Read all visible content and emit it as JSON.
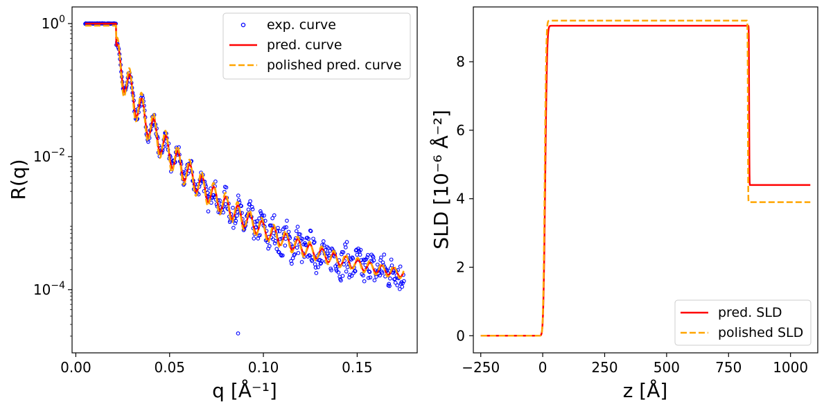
{
  "chart_data": [
    {
      "type": "scatter+line",
      "name": "reflectivity",
      "xlabel": "q [Å⁻¹]",
      "ylabel": "R(q)",
      "xlim": [
        -0.002,
        0.182
      ],
      "ylim_log10": [
        -4.95,
        0.25
      ],
      "yscale": "log",
      "xticks": [
        0.0,
        0.05,
        0.1,
        0.15
      ],
      "xtick_labels": [
        "0.00",
        "0.05",
        "0.10",
        "0.15"
      ],
      "yticks": [
        {
          "base": "10",
          "exp": "0",
          "value": 1
        },
        {
          "base": "10",
          "exp": "−2",
          "value": 0.01
        },
        {
          "base": "10",
          "exp": "−4",
          "value": 0.0001
        }
      ],
      "legend_position": "top-right",
      "series": [
        {
          "name": "exp. curve",
          "style": "open-circles",
          "color": "#0000ff"
        },
        {
          "name": "pred. curve",
          "style": "solid",
          "color": "#ff0000"
        },
        {
          "name": "polished pred. curve",
          "style": "dashed",
          "color": "#ffa500"
        }
      ],
      "model": {
        "q_min": 0.005,
        "q_max": 0.175,
        "q_critical": 0.0215,
        "plateau_R": 1.0,
        "background_R": 0.0001,
        "decay_R_at_022": 0.3,
        "decay_exponent": 4,
        "fringe_period": 0.0064,
        "fringe_log_amplitude": 0.55,
        "exp_outlier": {
          "q": 0.0865,
          "R": 2.2e-05
        }
      }
    },
    {
      "type": "line",
      "name": "sld-profile",
      "xlabel": "z [Å]",
      "ylabel": "SLD [10⁻⁶ Å⁻²]",
      "xlim": [
        -280,
        1110
      ],
      "ylim": [
        -0.5,
        9.6
      ],
      "xticks": [
        -250,
        0,
        250,
        500,
        750,
        1000
      ],
      "xtick_labels": [
        "−250",
        "0",
        "250",
        "500",
        "750",
        "1000"
      ],
      "yticks": [
        0,
        2,
        4,
        6,
        8
      ],
      "ytick_labels": [
        "0",
        "2",
        "4",
        "6",
        "8"
      ],
      "legend_position": "bottom-right",
      "series": [
        {
          "name": "pred. SLD",
          "style": "solid",
          "color": "#ff0000",
          "z_start": -250,
          "z_end": 1080,
          "substrate": 0.0,
          "film": 9.05,
          "ambient": 4.4,
          "interface1_z": 10,
          "interface1_width": 6,
          "interface2_z": 833,
          "interface2_width": 1
        },
        {
          "name": "polished SLD",
          "style": "dashed",
          "color": "#ffa500",
          "z_start": -250,
          "z_end": 1080,
          "substrate": 0.0,
          "film": 9.2,
          "ambient": 3.9,
          "interface1_z": 8,
          "interface1_width": 5,
          "interface2_z": 828,
          "interface2_width": 1
        }
      ]
    }
  ]
}
